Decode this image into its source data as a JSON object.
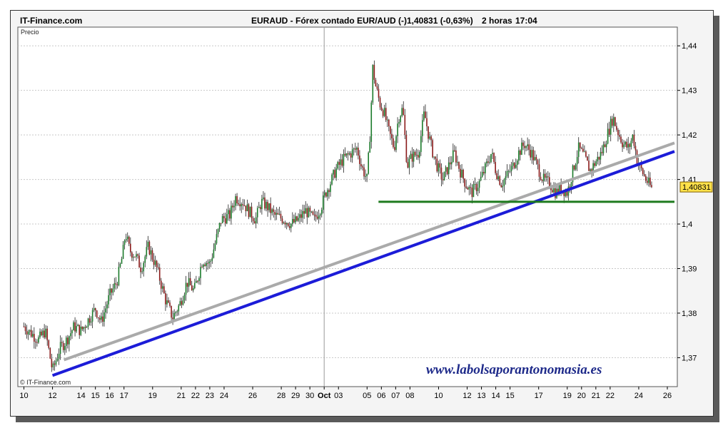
{
  "header": {
    "brand": "IT-Finance.com",
    "title": "EURAUD - Fórex contado EUR/AUD (-)",
    "price_change": "1,40831 (-0,63%)",
    "timeframe": "2 horas",
    "time": "17:04"
  },
  "panel_label": "Precio",
  "copyright": "© IT-Finance.com",
  "watermark": "www.labolsaporantonomasia.es",
  "colors": {
    "candle_up": "#1a7a2a",
    "candle_down": "#8a1a1a",
    "support_trend": "#1c1cd8",
    "upper_trend": "#aaaaaa",
    "horizontal_support": "#1e7a1e",
    "last_price_box": "#ffe14a"
  },
  "chart_data": {
    "type": "candlestick",
    "title": "EURAUD - Fórex contado EUR/AUD (-)",
    "ylabel": "Precio",
    "ylim": [
      1.3635,
      1.4442
    ],
    "y_ticks": [
      "1,37",
      "1,38",
      "1,39",
      "1,4",
      "1,41",
      "1,42",
      "1,43",
      "1,44"
    ],
    "y_tick_values": [
      1.37,
      1.38,
      1.39,
      1.4,
      1.41,
      1.42,
      1.43,
      1.44
    ],
    "x_ticks": [
      "10",
      "12",
      "14",
      "15",
      "16",
      "17",
      "19",
      "21",
      "22",
      "23",
      "24",
      "26",
      "28",
      "29",
      "30",
      "Oct",
      "03",
      "05",
      "06",
      "07",
      "08",
      "10",
      "12",
      "13",
      "14",
      "15",
      "17",
      "19",
      "20",
      "21",
      "22",
      "24",
      "26"
    ],
    "x_tick_index": [
      0,
      2,
      4,
      5,
      6,
      7,
      9,
      11,
      12,
      13,
      14,
      16,
      18,
      19,
      20,
      21,
      22,
      24,
      25,
      26,
      27,
      29,
      31,
      32,
      33,
      34,
      36,
      38,
      39,
      40,
      41,
      43,
      45
    ],
    "last_price": 1.40831,
    "last_price_label": "1,40831",
    "close_path": [
      [
        0,
        1.377
      ],
      [
        1,
        1.374
      ],
      [
        1.5,
        1.376
      ],
      [
        2,
        1.367
      ],
      [
        2.5,
        1.372
      ],
      [
        3,
        1.374
      ],
      [
        3.5,
        1.377
      ],
      [
        4,
        1.376
      ],
      [
        4.6,
        1.379
      ],
      [
        5,
        1.381
      ],
      [
        5.4,
        1.378
      ],
      [
        6,
        1.384
      ],
      [
        6.5,
        1.387
      ],
      [
        6.9,
        1.393
      ],
      [
        7.1,
        1.398
      ],
      [
        7.4,
        1.394
      ],
      [
        7.8,
        1.393
      ],
      [
        8.2,
        1.39
      ],
      [
        8.7,
        1.395
      ],
      [
        9.3,
        1.39
      ],
      [
        9.9,
        1.383
      ],
      [
        10.4,
        1.379
      ],
      [
        10.9,
        1.382
      ],
      [
        11.4,
        1.387
      ],
      [
        11.9,
        1.385
      ],
      [
        12.5,
        1.392
      ],
      [
        13,
        1.391
      ],
      [
        13.4,
        1.396
      ],
      [
        13.8,
        1.401
      ],
      [
        14.4,
        1.402
      ],
      [
        14.8,
        1.406
      ],
      [
        15.3,
        1.405
      ],
      [
        15.7,
        1.403
      ],
      [
        16.2,
        1.401
      ],
      [
        16.6,
        1.405
      ],
      [
        17,
        1.404
      ],
      [
        17.5,
        1.402
      ],
      [
        18.2,
        1.401
      ],
      [
        18.7,
        1.4
      ],
      [
        19.2,
        1.401
      ],
      [
        19.7,
        1.403
      ],
      [
        20.3,
        1.401
      ],
      [
        20.8,
        1.404
      ],
      [
        21.1,
        1.407
      ],
      [
        21.4,
        1.409
      ],
      [
        21.8,
        1.412
      ],
      [
        22.2,
        1.414
      ],
      [
        22.5,
        1.415
      ],
      [
        22.9,
        1.416
      ],
      [
        23.3,
        1.417
      ],
      [
        23.6,
        1.413
      ],
      [
        24,
        1.41
      ],
      [
        24.2,
        1.42
      ],
      [
        24.4,
        1.435
      ],
      [
        24.6,
        1.431
      ],
      [
        24.9,
        1.427
      ],
      [
        25.2,
        1.425
      ],
      [
        25.5,
        1.421
      ],
      [
        25.9,
        1.417
      ],
      [
        26.2,
        1.424
      ],
      [
        26.5,
        1.426
      ],
      [
        26.8,
        1.413
      ],
      [
        27.1,
        1.415
      ],
      [
        27.6,
        1.416
      ],
      [
        28,
        1.425
      ],
      [
        28.3,
        1.42
      ],
      [
        28.6,
        1.416
      ],
      [
        28.9,
        1.413
      ],
      [
        29.3,
        1.41
      ],
      [
        29.7,
        1.413
      ],
      [
        30.1,
        1.416
      ],
      [
        30.5,
        1.412
      ],
      [
        30.9,
        1.409
      ],
      [
        31.3,
        1.407
      ],
      [
        31.8,
        1.409
      ],
      [
        32.2,
        1.412
      ],
      [
        32.7,
        1.416
      ],
      [
        33,
        1.412
      ],
      [
        33.4,
        1.409
      ],
      [
        33.8,
        1.411
      ],
      [
        34.2,
        1.413
      ],
      [
        34.6,
        1.416
      ],
      [
        35,
        1.418
      ],
      [
        35.5,
        1.416
      ],
      [
        35.9,
        1.413
      ],
      [
        36.3,
        1.41
      ],
      [
        36.8,
        1.409
      ],
      [
        37.2,
        1.407
      ],
      [
        37.6,
        1.408
      ],
      [
        38,
        1.407
      ],
      [
        38.4,
        1.412
      ],
      [
        38.8,
        1.417
      ],
      [
        39.2,
        1.415
      ],
      [
        39.6,
        1.412
      ],
      [
        40,
        1.414
      ],
      [
        40.4,
        1.416
      ],
      [
        40.8,
        1.42
      ],
      [
        41.2,
        1.424
      ],
      [
        41.5,
        1.421
      ],
      [
        41.9,
        1.418
      ],
      [
        42.3,
        1.417
      ],
      [
        42.6,
        1.42
      ],
      [
        42.9,
        1.414
      ],
      [
        43.2,
        1.412
      ],
      [
        43.5,
        1.41
      ],
      [
        43.9,
        1.408
      ]
    ],
    "lines": [
      {
        "name": "upper_trend",
        "start": [
          2.8,
          1.3695
        ],
        "end": [
          45.5,
          1.4182
        ]
      },
      {
        "name": "support_trend",
        "start": [
          2,
          1.366
        ],
        "end": [
          45.5,
          1.4163
        ]
      },
      {
        "name": "horizontal_support",
        "start": [
          24.8,
          1.405
        ],
        "end": [
          45.5,
          1.405
        ]
      }
    ]
  }
}
